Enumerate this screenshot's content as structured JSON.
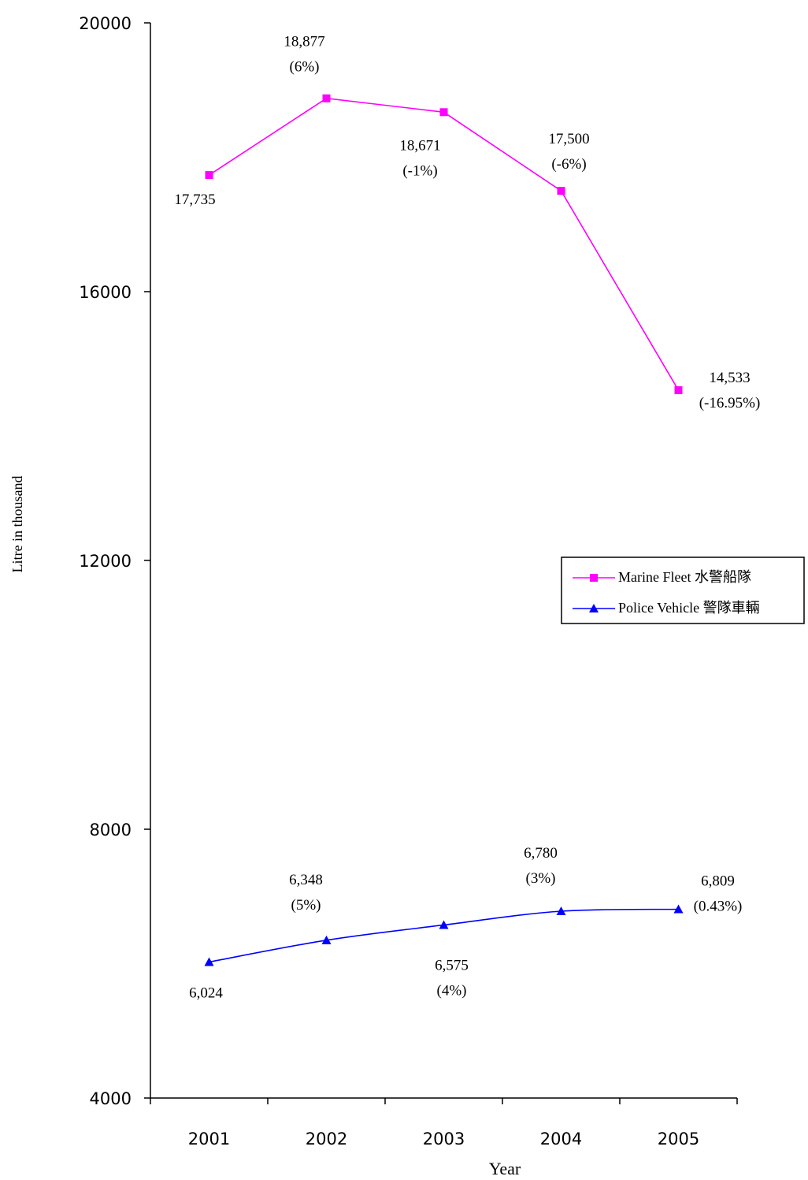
{
  "chart_data": {
    "type": "line",
    "title": "",
    "xlabel": "Year",
    "ylabel": "Litre in thousand",
    "categories": [
      "2001",
      "2002",
      "2003",
      "2004",
      "2005"
    ],
    "ylim": [
      4000,
      20000
    ],
    "yticks": [
      "4000",
      "8000",
      "12000",
      "16000",
      "20000"
    ],
    "grid": false,
    "legend_position": "right",
    "series": [
      {
        "name": "Marine Fleet 水警船隊",
        "color": "#ff00ff",
        "marker": "square",
        "values": [
          17735,
          18877,
          18671,
          17500,
          14533
        ],
        "labels": [
          [
            "17,735"
          ],
          [
            "18,877",
            "(6%)"
          ],
          [
            "18,671",
            "(-1%)"
          ],
          [
            "17,500",
            "(-6%)"
          ],
          [
            "14,533",
            "(-16.95%)"
          ]
        ]
      },
      {
        "name": "Police Vehicle 警隊車輛",
        "color": "#0000ff",
        "marker": "triangle",
        "values": [
          6024,
          6348,
          6575,
          6780,
          6809
        ],
        "labels": [
          [
            "6,024"
          ],
          [
            "6,348",
            "(5%)"
          ],
          [
            "6,575",
            "(4%)"
          ],
          [
            "6,780",
            "(3%)"
          ],
          [
            "6,809",
            "(0.43%)"
          ]
        ]
      }
    ]
  }
}
